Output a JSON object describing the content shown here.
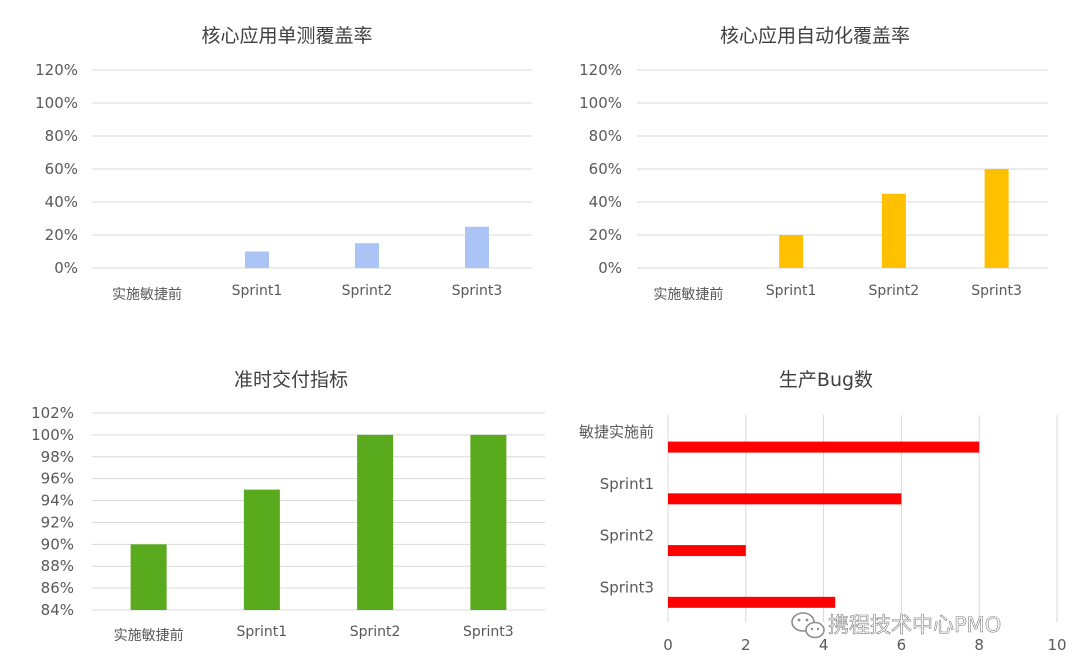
{
  "chart_data": [
    {
      "type": "bar",
      "title": "核心应用单测覆盖率",
      "categories": [
        "实施敏捷前",
        "Sprint1",
        "Sprint2",
        "Sprint3"
      ],
      "values": [
        0,
        10,
        15,
        25
      ],
      "ylim": [
        0,
        120
      ],
      "yticks": [
        "0%",
        "20%",
        "40%",
        "60%",
        "80%",
        "100%",
        "120%"
      ],
      "grid": true,
      "color": "#a9c4f5"
    },
    {
      "type": "bar",
      "title": "核心应用自动化覆盖率",
      "categories": [
        "实施敏捷前",
        "Sprint1",
        "Sprint2",
        "Sprint3"
      ],
      "values": [
        0,
        20,
        45,
        60
      ],
      "ylim": [
        0,
        120
      ],
      "yticks": [
        "0%",
        "20%",
        "40%",
        "60%",
        "80%",
        "100%",
        "120%"
      ],
      "grid": true,
      "color": "#ffc000"
    },
    {
      "type": "bar",
      "title": "准时交付指标",
      "categories": [
        "实施敏捷前",
        "Sprint1",
        "Sprint2",
        "Sprint3"
      ],
      "values": [
        90,
        95,
        100,
        100
      ],
      "ylim": [
        84,
        102
      ],
      "yticks": [
        "84%",
        "86%",
        "88%",
        "90%",
        "92%",
        "94%",
        "96%",
        "98%",
        "100%",
        "102%"
      ],
      "grid": true,
      "color": "#5aaa1e"
    },
    {
      "type": "bar",
      "orientation": "horizontal",
      "title": "生产Bug数",
      "categories": [
        "敏捷实施前",
        "Sprint1",
        "Sprint2",
        "Sprint3"
      ],
      "values": [
        8,
        6,
        2,
        4.3
      ],
      "xlim": [
        0,
        10
      ],
      "xticks": [
        "0",
        "2",
        "4",
        "6",
        "8",
        "10"
      ],
      "grid": true,
      "color": "#ff0000"
    }
  ],
  "watermark": {
    "icon": "wechat-icon",
    "text": "携程技术中心PMO"
  }
}
